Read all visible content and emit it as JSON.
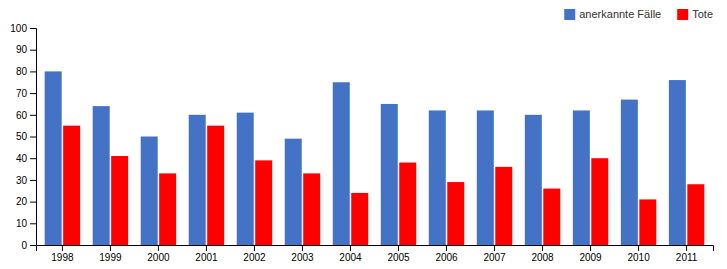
{
  "chart_data": {
    "type": "bar",
    "categories": [
      "1998",
      "1999",
      "2000",
      "2001",
      "2002",
      "2003",
      "2004",
      "2005",
      "2006",
      "2007",
      "2008",
      "2009",
      "2010",
      "2011"
    ],
    "series": [
      {
        "name": "anerkannte Fälle",
        "color": "#4472C4",
        "values": [
          80,
          64,
          50,
          60,
          61,
          49,
          75,
          65,
          62,
          62,
          60,
          62,
          67,
          76
        ]
      },
      {
        "name": "Tote",
        "color": "#FF0000",
        "values": [
          55,
          41,
          33,
          55,
          39,
          33,
          24,
          38,
          29,
          36,
          26,
          40,
          21,
          28
        ]
      }
    ],
    "ylim": [
      0,
      100
    ],
    "yticks": [
      0,
      10,
      20,
      30,
      40,
      50,
      60,
      70,
      80,
      90,
      100
    ],
    "grid": false,
    "legend": "upper right"
  }
}
